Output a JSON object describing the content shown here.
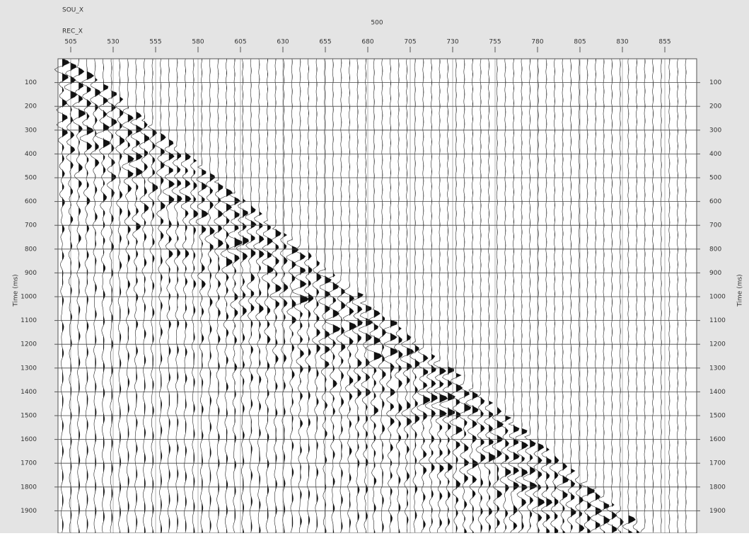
{
  "chart_data": {
    "type": "seismic-gather",
    "header_labels": [
      "SOU_X",
      "REC_X"
    ],
    "sou_x": 500,
    "xlim": [
      497.5,
      873.75
    ],
    "xticks": [
      505,
      530,
      555,
      580,
      605,
      630,
      655,
      680,
      705,
      730,
      755,
      780,
      805,
      830,
      855
    ],
    "ylim": [
      0,
      2000
    ],
    "yticks": [
      100,
      200,
      300,
      400,
      500,
      600,
      700,
      800,
      900,
      1000,
      1100,
      1200,
      1300,
      1400,
      1500,
      1600,
      1700,
      1800,
      1900
    ],
    "ylabel": "Time (ms)",
    "grid": true
  }
}
